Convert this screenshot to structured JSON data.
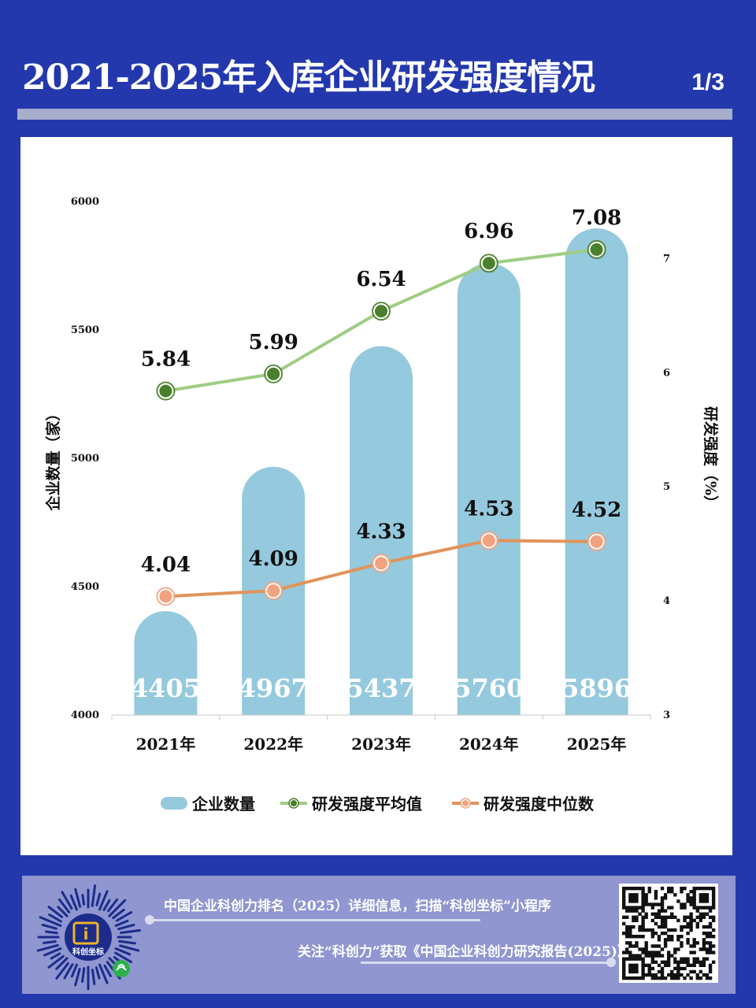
{
  "header": {
    "title": "2021-2025年入库企业研发强度情况",
    "page": "1/3"
  },
  "chart_data": {
    "type": "bar",
    "categories": [
      "2021年",
      "2022年",
      "2023年",
      "2024年",
      "2025年"
    ],
    "series": [
      {
        "name": "企业数量",
        "type": "bar",
        "axis": "left",
        "values": [
          4405,
          4967,
          5437,
          5760,
          5896
        ],
        "color": "#95c9de"
      },
      {
        "name": "研发强度平均值",
        "type": "line",
        "axis": "right",
        "values": [
          5.84,
          5.99,
          6.54,
          6.96,
          7.08
        ],
        "color": "#9fcd84",
        "marker_color": "#4a7f2c"
      },
      {
        "name": "研发强度中位数",
        "type": "line",
        "axis": "right",
        "values": [
          4.04,
          4.09,
          4.33,
          4.53,
          4.52
        ],
        "color": "#e0945a",
        "marker_color": "#f2a27e"
      }
    ],
    "ylabel_left": "企业数量（家）",
    "ylabel_right": "研发强度（%）",
    "ylim_left": [
      4000,
      6000
    ],
    "ylim_right": [
      3,
      7.5
    ],
    "yticks_left": [
      "4000",
      "4500",
      "5000",
      "5500",
      "6000"
    ],
    "yticks_right": [
      "3",
      "4",
      "5",
      "6",
      "7"
    ],
    "legend_position": "bottom",
    "grid": false
  },
  "footer": {
    "line1": "中国企业科创力排名（2025）详细信息，扫描“科创坐标”小程序",
    "line2": "关注“科创力”获取《中国企业科创力研究报告(2025)》",
    "logo_text": "科创坐标",
    "logo_mark": "i"
  },
  "colors": {
    "background": "#2438ad",
    "panel": "#ffffff",
    "footer": "#8f96d0",
    "bar_label": "#ffffff"
  }
}
